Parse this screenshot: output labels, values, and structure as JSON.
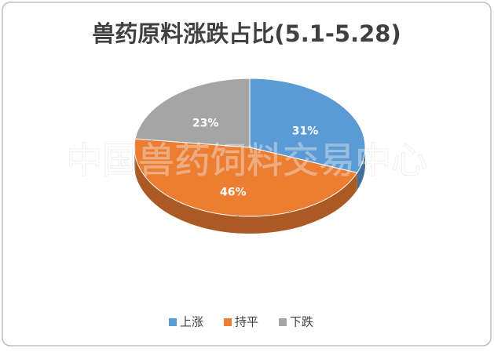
{
  "chart_data": {
    "type": "pie",
    "title": "兽药原料涨跌占比(5.1-5.28)",
    "watermark": "中国兽药饲料交易中心",
    "categories": [
      "上涨",
      "持平",
      "下跌"
    ],
    "values": [
      31,
      46,
      23
    ],
    "value_labels": [
      "31%",
      "46%",
      "23%"
    ],
    "colors": [
      "#5b9bd5",
      "#ed7d31",
      "#a5a5a5"
    ],
    "legend": "bottom"
  }
}
